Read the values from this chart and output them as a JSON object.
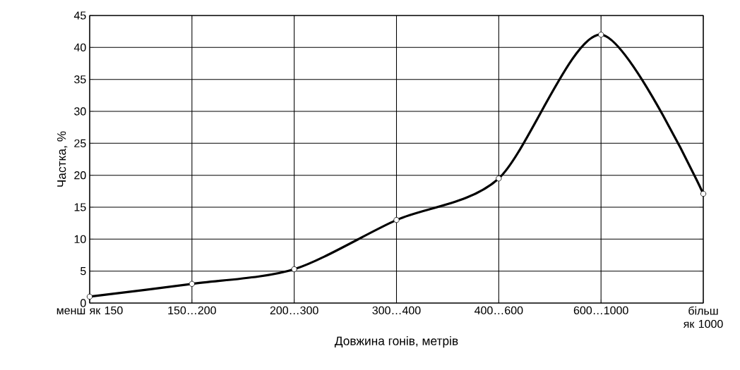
{
  "chart_data": {
    "type": "line",
    "xlabel": "Довжина гонів, метрів",
    "ylabel": "Частка, %",
    "categories": [
      "менш як 150",
      "150…200",
      "200…300",
      "300…400",
      "400…600",
      "600…1000",
      "більш як 1000"
    ],
    "series": [
      {
        "color": "#000000",
        "values": [
          1,
          3,
          5.3,
          13,
          19.5,
          42,
          17.1
        ]
      }
    ],
    "ylim": [
      0,
      45
    ],
    "yticks": [
      0,
      5,
      10,
      15,
      20,
      25,
      30,
      35,
      40,
      45
    ],
    "grid": true,
    "marker": "circle",
    "line_style": "solid"
  }
}
